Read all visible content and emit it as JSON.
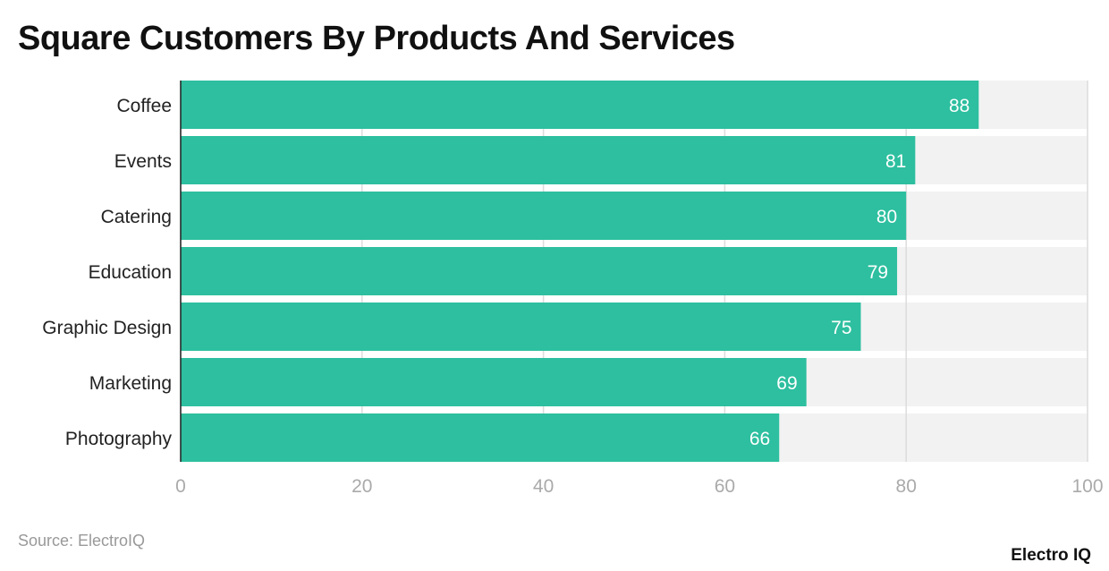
{
  "chart_data": {
    "type": "bar",
    "orientation": "horizontal",
    "title": "Square Customers By Products And Services",
    "categories": [
      "Coffee",
      "Events",
      "Catering",
      "Education",
      "Graphic Design",
      "Marketing",
      "Photography"
    ],
    "values": [
      88,
      81,
      80,
      79,
      75,
      69,
      66
    ],
    "xlim": [
      0,
      100
    ],
    "xticks": [
      0,
      20,
      40,
      60,
      80,
      100
    ],
    "grid": true,
    "data_labels": true,
    "bar_color": "#2dbf9f",
    "track_color": "#f2f2f2"
  },
  "source": "Source: ElectroIQ",
  "logo": "Electro IQ"
}
